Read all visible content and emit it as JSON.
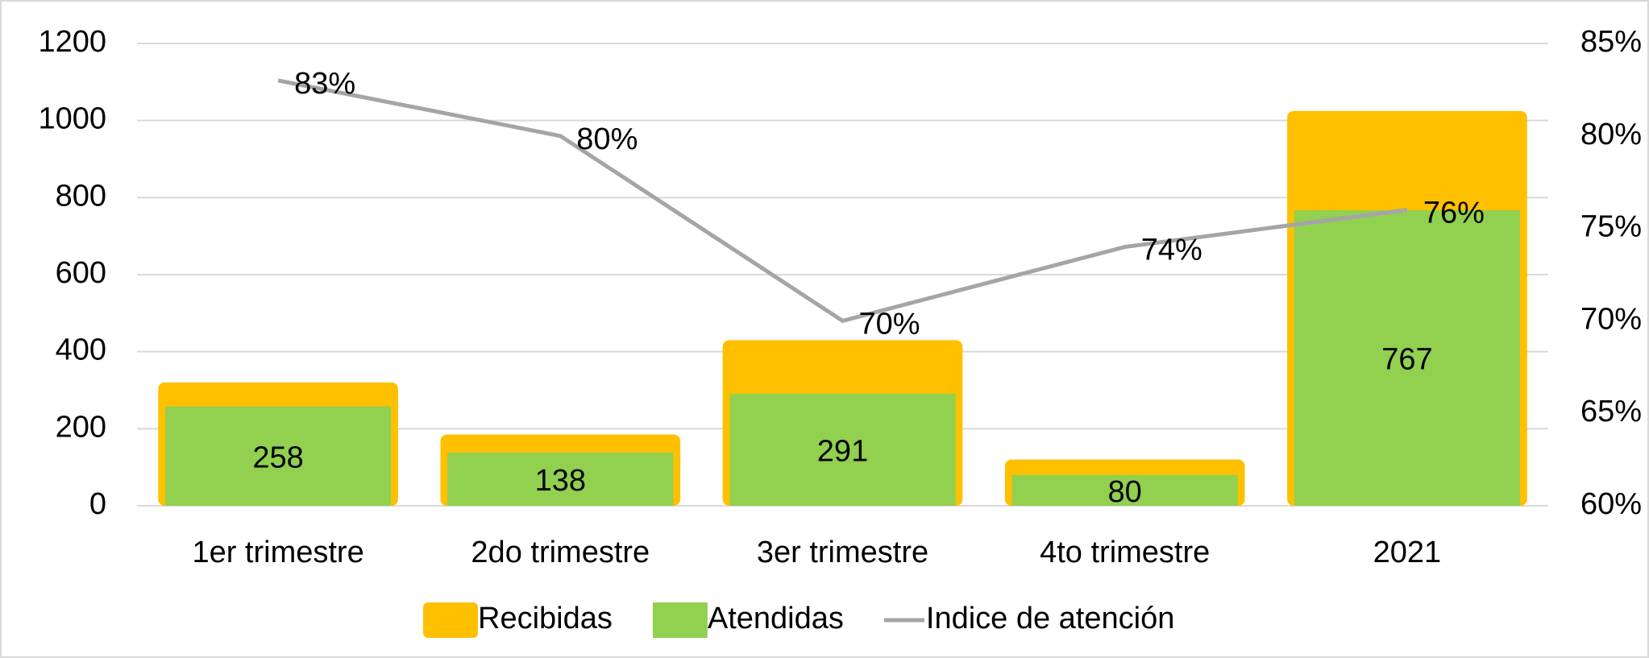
{
  "chart_data": {
    "type": "bar_line",
    "categories": [
      "1er trimestre",
      "2do trimestre",
      "3er trimestre",
      "4to trimestre",
      "2021"
    ],
    "series": [
      {
        "name": "Recibidas",
        "color": "#ffc000",
        "values": [
          320,
          185,
          430,
          120,
          1025
        ]
      },
      {
        "name": "Atendidas",
        "color": "#92d050",
        "values": [
          258,
          138,
          291,
          80,
          767
        ],
        "value_labels": [
          "258",
          "138",
          "291",
          "80",
          "767"
        ]
      },
      {
        "name": "Indice de atención",
        "color": "#a5a5a5",
        "axis": "y2",
        "values": [
          83,
          80,
          70,
          74,
          76
        ],
        "value_labels": [
          "83%",
          "80%",
          "70%",
          "74%",
          "76%"
        ]
      }
    ],
    "ylim": [
      0,
      1200
    ],
    "yticks": [
      0,
      200,
      400,
      600,
      800,
      1000,
      1200
    ],
    "y2lim": [
      60,
      85
    ],
    "y2ticks": [
      {
        "value": 60,
        "label": "60%"
      },
      {
        "value": 65,
        "label": "65%"
      },
      {
        "value": 70,
        "label": "70%"
      },
      {
        "value": 75,
        "label": "75%"
      },
      {
        "value": 80,
        "label": "80%"
      },
      {
        "value": 85,
        "label": "85%"
      }
    ],
    "grid": true,
    "legend": "bottom"
  }
}
